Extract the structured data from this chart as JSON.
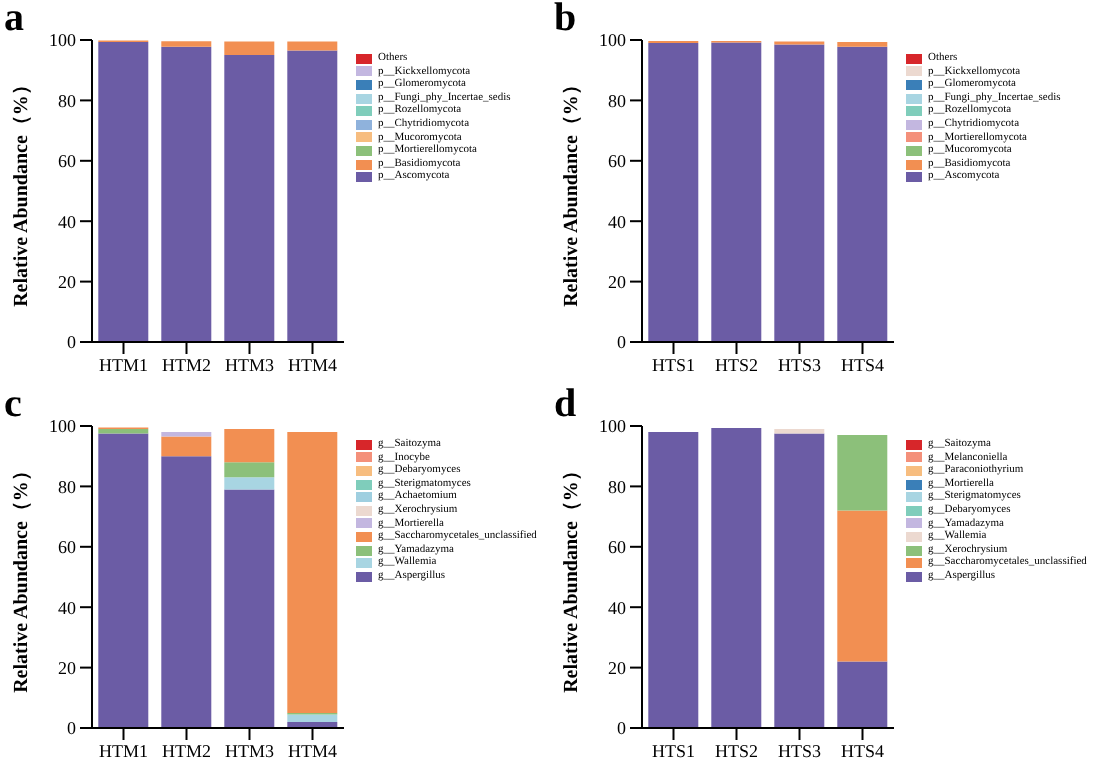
{
  "chart_data": [
    {
      "type": "bar",
      "title": "a",
      "ylabel": "Relative Abundance（%）",
      "categories": [
        "HTM1",
        "HTM2",
        "HTM3",
        "HTM4"
      ],
      "stacked": true,
      "ylim": [
        0,
        100
      ],
      "yticks": [
        0,
        20,
        40,
        60,
        80,
        100
      ],
      "legend": "right",
      "series": [
        {
          "name": "p__Ascomycota",
          "color": "#6b5ca5",
          "values": [
            99.3,
            97.8,
            95,
            96.5
          ]
        },
        {
          "name": "p__Basidiomycota",
          "color": "#f28f52",
          "values": [
            0.5,
            1.8,
            4.5,
            3
          ]
        },
        {
          "name": "p__Mortierellomycota",
          "color": "#8cc07a",
          "values": [
            null,
            null,
            null,
            null
          ]
        },
        {
          "name": "p__Mucoromycota",
          "color": "#f7bd7f",
          "values": [
            null,
            null,
            null,
            null
          ]
        },
        {
          "name": "p__Chytridiomycota",
          "color": "#8fb2dc",
          "values": [
            null,
            null,
            null,
            null
          ]
        },
        {
          "name": "p__Rozellomycota",
          "color": "#7fcdbb",
          "values": [
            null,
            null,
            null,
            null
          ]
        },
        {
          "name": "p__Fungi_phy_Incertae_sedis",
          "color": "#a8d5e2",
          "values": [
            null,
            null,
            null,
            null
          ]
        },
        {
          "name": "p__Glomeromycota",
          "color": "#3a7fb8",
          "values": [
            null,
            null,
            null,
            null
          ]
        },
        {
          "name": "p__Kickxellomycota",
          "color": "#c3b7e0",
          "values": [
            null,
            null,
            null,
            null
          ]
        },
        {
          "name": "Others",
          "color": "#d7262a",
          "values": [
            null,
            null,
            null,
            null
          ]
        }
      ]
    },
    {
      "type": "bar",
      "title": "b",
      "ylabel": "Relative Abundance（%）",
      "categories": [
        "HTS1",
        "HTS2",
        "HTS3",
        "HTS4"
      ],
      "stacked": true,
      "ylim": [
        0,
        100
      ],
      "yticks": [
        0,
        20,
        40,
        60,
        80,
        100
      ],
      "legend": "right",
      "series": [
        {
          "name": "p__Ascomycota",
          "color": "#6b5ca5",
          "values": [
            99,
            99.2,
            98.5,
            97.8
          ]
        },
        {
          "name": "p__Basidiomycota",
          "color": "#f28f52",
          "values": [
            0.7,
            0.5,
            1,
            1.5
          ]
        },
        {
          "name": "p__Mucoromycota",
          "color": "#8cc07a",
          "values": [
            null,
            null,
            null,
            null
          ]
        },
        {
          "name": "p__Mortierellomycota",
          "color": "#f4907a",
          "values": [
            null,
            null,
            null,
            null
          ]
        },
        {
          "name": "p__Chytridiomycota",
          "color": "#c3b7e0",
          "values": [
            null,
            null,
            null,
            null
          ]
        },
        {
          "name": "p__Rozellomycota",
          "color": "#7fcdbb",
          "values": [
            null,
            null,
            null,
            null
          ]
        },
        {
          "name": "p__Fungi_phy_Incertae_sedis",
          "color": "#a8d5e2",
          "values": [
            null,
            null,
            null,
            null
          ]
        },
        {
          "name": "p__Glomeromycota",
          "color": "#3a7fb8",
          "values": [
            null,
            null,
            null,
            null
          ]
        },
        {
          "name": "p__Kickxellomycota",
          "color": "#ecd9d0",
          "values": [
            null,
            null,
            null,
            null
          ]
        },
        {
          "name": "Others",
          "color": "#d7262a",
          "values": [
            null,
            null,
            null,
            null
          ]
        }
      ]
    },
    {
      "type": "bar",
      "title": "c",
      "ylabel": "Relative Abundance（%）",
      "categories": [
        "HTM1",
        "HTM2",
        "HTM3",
        "HTM4"
      ],
      "stacked": true,
      "ylim": [
        0,
        100
      ],
      "yticks": [
        0,
        20,
        40,
        60,
        80,
        100
      ],
      "legend": "right",
      "series": [
        {
          "name": "g__Aspergillus",
          "color": "#6b5ca5",
          "values": [
            97.5,
            90,
            79,
            2
          ]
        },
        {
          "name": "g__Wallemia",
          "color": "#a8d5e2",
          "values": [
            null,
            null,
            4,
            2.5
          ]
        },
        {
          "name": "g__Yamadazyma",
          "color": "#8cc07a",
          "values": [
            1.5,
            null,
            5,
            0.5
          ]
        },
        {
          "name": "g__Saccharomycetales_unclassified",
          "color": "#f28f52",
          "values": [
            0.5,
            6.5,
            11,
            93
          ]
        },
        {
          "name": "g__Mortierella",
          "color": "#c3b7e0",
          "values": [
            null,
            1.5,
            null,
            null
          ]
        },
        {
          "name": "g__Xerochrysium",
          "color": "#ecd9d0",
          "values": [
            null,
            null,
            null,
            null
          ]
        },
        {
          "name": "g__Achaetomium",
          "color": "#9fcfe0",
          "values": [
            null,
            null,
            null,
            null
          ]
        },
        {
          "name": "g__Sterigmatomyces",
          "color": "#7fcdbb",
          "values": [
            null,
            null,
            null,
            null
          ]
        },
        {
          "name": "g__Debaryomyces",
          "color": "#f7bd7f",
          "values": [
            null,
            null,
            null,
            null
          ]
        },
        {
          "name": "g__Inocybe",
          "color": "#f4907a",
          "values": [
            null,
            null,
            null,
            null
          ]
        },
        {
          "name": "g__Saitozyma",
          "color": "#d7262a",
          "values": [
            null,
            null,
            null,
            null
          ]
        }
      ]
    },
    {
      "type": "bar",
      "title": "d",
      "ylabel": "Relative Abundance（%）",
      "categories": [
        "HTS1",
        "HTS2",
        "HTS3",
        "HTS4"
      ],
      "stacked": true,
      "ylim": [
        0,
        100
      ],
      "yticks": [
        0,
        20,
        40,
        60,
        80,
        100
      ],
      "legend": "right",
      "series": [
        {
          "name": "g__Aspergillus",
          "color": "#6b5ca5",
          "values": [
            98,
            99.3,
            97.5,
            22
          ]
        },
        {
          "name": "g__Saccharomycetales_unclassified",
          "color": "#f28f52",
          "values": [
            null,
            null,
            null,
            50
          ]
        },
        {
          "name": "g__Xerochrysium",
          "color": "#8cc07a",
          "values": [
            null,
            null,
            null,
            25
          ]
        },
        {
          "name": "g__Wallemia",
          "color": "#ecd9d0",
          "values": [
            null,
            null,
            1.5,
            null
          ]
        },
        {
          "name": "g__Yamadazyma",
          "color": "#c3b7e0",
          "values": [
            null,
            null,
            null,
            null
          ]
        },
        {
          "name": "g__Debaryomyces",
          "color": "#7fcdbb",
          "values": [
            null,
            null,
            null,
            null
          ]
        },
        {
          "name": "g__Sterigmatomyces",
          "color": "#a8d5e2",
          "values": [
            null,
            null,
            null,
            null
          ]
        },
        {
          "name": "g__Mortierella",
          "color": "#3a7fb8",
          "values": [
            null,
            null,
            null,
            null
          ]
        },
        {
          "name": "g__Paraconiothyrium",
          "color": "#f7bd7f",
          "values": [
            null,
            null,
            null,
            null
          ]
        },
        {
          "name": "g__Melanconiella",
          "color": "#f4907a",
          "values": [
            null,
            null,
            null,
            null
          ]
        },
        {
          "name": "g__Saitozyma",
          "color": "#d7262a",
          "values": [
            null,
            null,
            null,
            null
          ]
        }
      ]
    }
  ]
}
